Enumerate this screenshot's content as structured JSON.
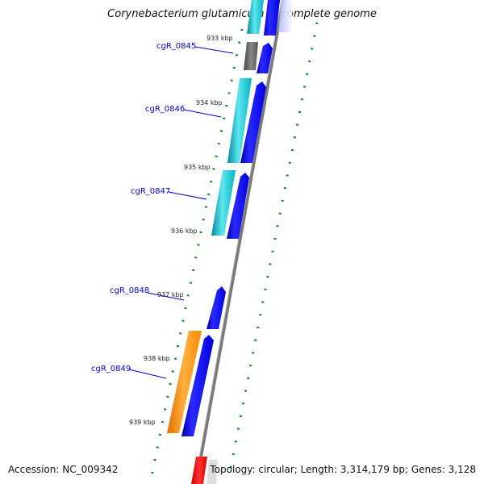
{
  "title": "Corynebacterium glutamicum R, complete genome",
  "footer": {
    "accession": "Accession: NC_009342",
    "topology": "Topology: circular; Length: 3,314,179 bp; Genes: 3,128"
  },
  "genes": [
    {
      "id": "g845",
      "label": "cgR_0845"
    },
    {
      "id": "g846",
      "label": "cgR_0846"
    },
    {
      "id": "g847",
      "label": "cgR_0847"
    },
    {
      "id": "g848",
      "label": "cgR_0848"
    },
    {
      "id": "g849",
      "label": "cgR_0849"
    }
  ],
  "kbp_ticks": [
    "933 kbp",
    "934 kbp",
    "935 kbp",
    "936 kbp",
    "937 kbp",
    "938 kbp",
    "939 kbp"
  ],
  "colors": {
    "cds_forward": "#0000ee",
    "cds_teal": "#00b8c8",
    "cds_grey": "#666666",
    "cds_orange": "#ff8c00",
    "cds_red": "#ee0000",
    "tick_green": "#118811",
    "backbone": "#777777",
    "label_blue": "#0000cc"
  }
}
